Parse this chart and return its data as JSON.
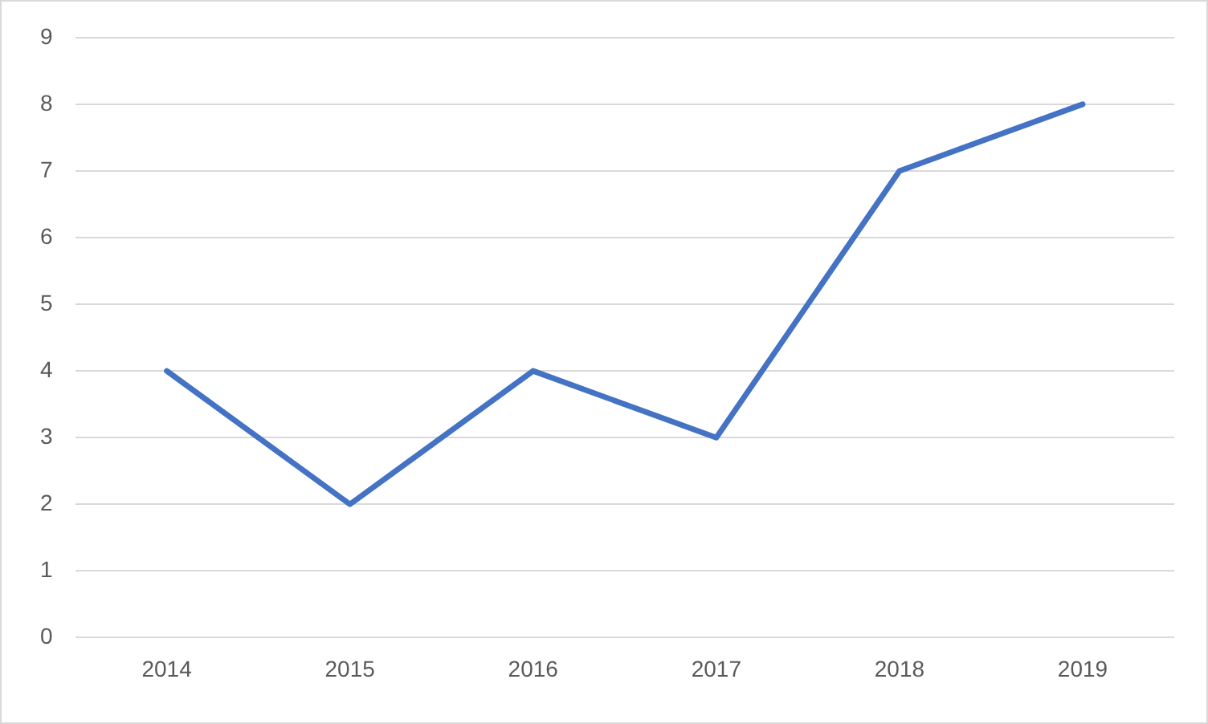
{
  "chart_data": {
    "type": "line",
    "categories": [
      "2014",
      "2015",
      "2016",
      "2017",
      "2018",
      "2019"
    ],
    "series": [
      {
        "color": "#4472c4",
        "values": [
          4,
          2,
          4,
          3,
          7,
          8
        ]
      }
    ],
    "ylim": [
      0,
      9
    ],
    "yticks": [
      0,
      1,
      2,
      3,
      4,
      5,
      6,
      7,
      8,
      9
    ],
    "grid": "y",
    "legend": false,
    "marker": "none",
    "line_style": "solid"
  }
}
